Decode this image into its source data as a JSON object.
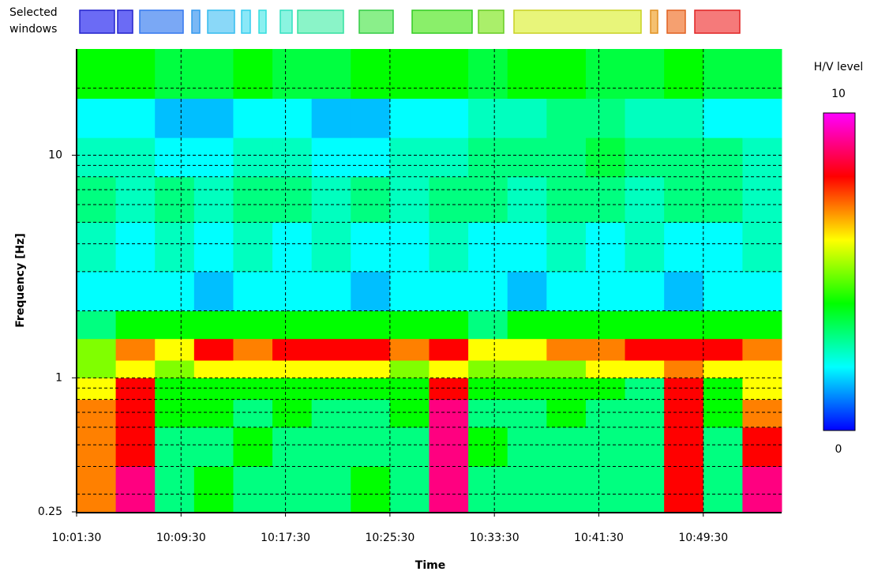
{
  "chart_data": {
    "type": "heatmap",
    "selected_windows_label": [
      "Selected",
      "windows"
    ],
    "xlabel": "Time",
    "ylabel": "Frequency [Hz]",
    "colorbar_label": "H/V level",
    "log_y": true,
    "xlim": [
      "10:01:30",
      "10:55:30"
    ],
    "xticks": [
      "10:01:30",
      "10:09:30",
      "10:17:30",
      "10:25:30",
      "10:33:30",
      "10:41:30",
      "10:49:30"
    ],
    "ylim": [
      0.25,
      30
    ],
    "yticks": [
      0.25,
      1,
      10
    ],
    "minor_yticks": [
      0.3,
      0.4,
      0.5,
      0.6,
      0.7,
      0.8,
      0.9,
      2,
      3,
      4,
      5,
      6,
      7,
      8,
      9,
      20
    ],
    "grid": true,
    "zlim": [
      0,
      10
    ],
    "zticks": [
      0,
      10
    ],
    "colormap": [
      "#0000ff",
      "#00ffff",
      "#00ff00",
      "#ffff00",
      "#ff0000",
      "#ff00ff"
    ],
    "x_edges": [
      "10:01:30",
      "10:04:30",
      "10:07:30",
      "10:10:30",
      "10:13:30",
      "10:16:30",
      "10:19:30",
      "10:22:30",
      "10:25:30",
      "10:28:30",
      "10:31:30",
      "10:34:30",
      "10:37:30",
      "10:40:30",
      "10:43:30",
      "10:46:30",
      "10:49:30",
      "10:52:30",
      "10:55:30"
    ],
    "y_edges": [
      0.25,
      0.4,
      0.6,
      0.8,
      1,
      1.2,
      1.5,
      2,
      3,
      5,
      8,
      12,
      18,
      30
    ],
    "z": [
      [
        7,
        9,
        3,
        4,
        3,
        3,
        3,
        4,
        3,
        9,
        3,
        3,
        3,
        3,
        3,
        8,
        3,
        9
      ],
      [
        7,
        8,
        3,
        3,
        4,
        3,
        3,
        3,
        3,
        9,
        4,
        3,
        3,
        3,
        3,
        8,
        3,
        8
      ],
      [
        7,
        8,
        4,
        4,
        3,
        4,
        3,
        3,
        4,
        9,
        3,
        3,
        4,
        3,
        3,
        8,
        4,
        7
      ],
      [
        6,
        8,
        4,
        4,
        4,
        4,
        4,
        4,
        4,
        8,
        4,
        4,
        4,
        4,
        3,
        8,
        4,
        6
      ],
      [
        5,
        6,
        5,
        6,
        6,
        6,
        6,
        6,
        5,
        6,
        5,
        5,
        5,
        6,
        6,
        7,
        6,
        6
      ],
      [
        5,
        7,
        6,
        8,
        7,
        8,
        8,
        8,
        7,
        8,
        6,
        6,
        7,
        7,
        8,
        8,
        8,
        7
      ],
      [
        3,
        4,
        4,
        4,
        4,
        4,
        4,
        4,
        4,
        4,
        3,
        4,
        4,
        4,
        4,
        4,
        4,
        4
      ],
      [
        2,
        2,
        2,
        1.5,
        2,
        2,
        2,
        1.5,
        2,
        2,
        2,
        1.5,
        2,
        2,
        2,
        1.5,
        2,
        2
      ],
      [
        2.5,
        2,
        2.5,
        2,
        2.5,
        2,
        2.5,
        2,
        2,
        2.5,
        2,
        2,
        2.5,
        2,
        2.5,
        2,
        2,
        2.5
      ],
      [
        3,
        2.5,
        3,
        2.5,
        3,
        3,
        2.5,
        3,
        2.5,
        3,
        3,
        2.5,
        3,
        3,
        2.5,
        3,
        3,
        2.5
      ],
      [
        2.5,
        2.5,
        2,
        2,
        2.5,
        2.5,
        2,
        2,
        2.5,
        2.5,
        3,
        3,
        3,
        3.5,
        3,
        3,
        3,
        2.5
      ],
      [
        2,
        2,
        1.5,
        1.5,
        2,
        2,
        1.5,
        1.5,
        2,
        2,
        2.5,
        2.5,
        3,
        3,
        2.5,
        2.5,
        2,
        2
      ],
      [
        4,
        4,
        3.5,
        3.5,
        4,
        3.5,
        3.5,
        4,
        4,
        4,
        3.5,
        4,
        4,
        3.5,
        3.5,
        4,
        3.5,
        3.5
      ]
    ]
  }
}
